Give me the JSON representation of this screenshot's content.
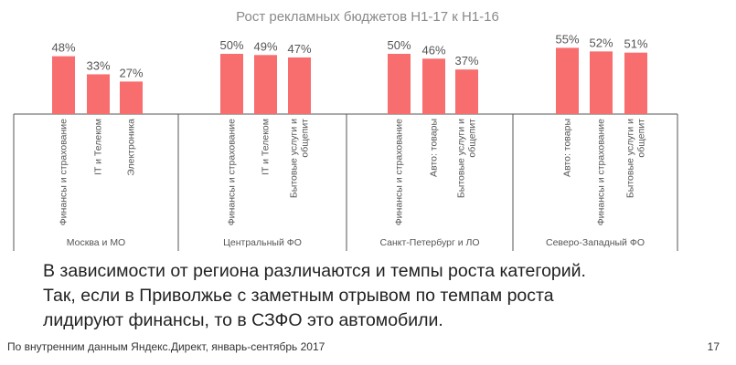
{
  "chart_data": {
    "type": "bar",
    "title": "Рост рекламных бюджетов Н1-17 к Н1-16",
    "xlabel": "",
    "ylabel": "",
    "ylim": [
      0,
      100
    ],
    "grid": false,
    "legend": "none",
    "bar_color": "#f86d6e",
    "groups": [
      {
        "name": "Москва и МО",
        "categories": [
          [
            "Финансы и страхование"
          ],
          [
            "IT и Телеком"
          ],
          [
            "Электроника"
          ]
        ],
        "values": [
          48,
          33,
          27
        ],
        "labels": [
          "48%",
          "33%",
          "27%"
        ]
      },
      {
        "name": "Центральный ФО",
        "categories": [
          [
            "Финансы и страхование"
          ],
          [
            "IT и Телеком"
          ],
          [
            "Бытовые услуги и",
            "общепит"
          ]
        ],
        "values": [
          50,
          49,
          47
        ],
        "labels": [
          "50%",
          "49%",
          "47%"
        ]
      },
      {
        "name": "Санкт-Петербург и ЛО",
        "categories": [
          [
            "Финансы и страхование"
          ],
          [
            "Авто: товары"
          ],
          [
            "Бытовые услуги и",
            "общепит"
          ]
        ],
        "values": [
          50,
          46,
          37
        ],
        "labels": [
          "50%",
          "46%",
          "37%"
        ]
      },
      {
        "name": "Северо-Западный ФО",
        "categories": [
          [
            "Авто: товары"
          ],
          [
            "Финансы и страхование"
          ],
          [
            "Бытовые услуги и",
            "общепит"
          ]
        ],
        "values": [
          55,
          52,
          51
        ],
        "labels": [
          "55%",
          "52%",
          "51%"
        ]
      }
    ]
  },
  "body_text": [
    "В зависимости от региона различаются и темпы роста категорий.",
    "Так, если в Приволжье с заметным отрывом по темпам роста",
    "лидируют финансы, то в СЗФО это автомобили."
  ],
  "footer": {
    "source": "По внутренним данным Яндекс.Директ, январь-сентябрь 2017",
    "page_number": "17"
  }
}
